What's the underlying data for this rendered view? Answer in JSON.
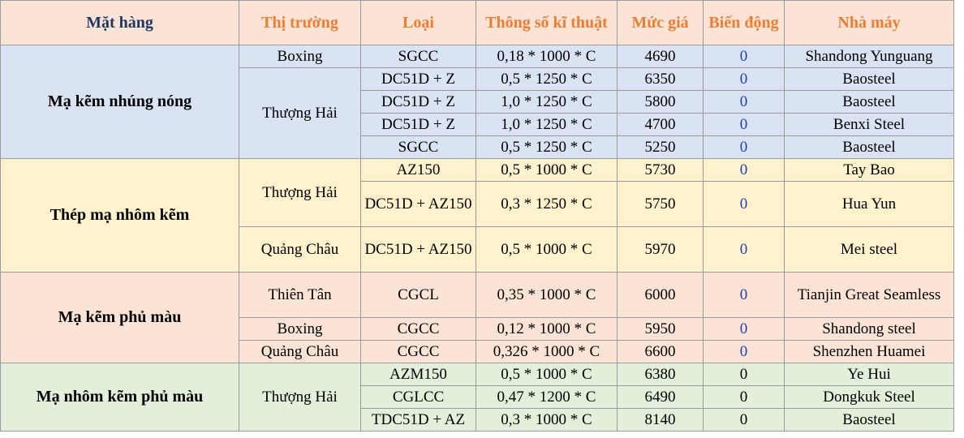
{
  "table": {
    "headers": {
      "product": "Mặt hàng",
      "market": "Thị trường",
      "type": "Loại",
      "spec": "Thông số kĩ thuật",
      "price": "Mức giá",
      "change": "Biến động",
      "factory": "Nhà máy"
    },
    "groups": [
      {
        "product": "Mạ kẽm nhúng nóng",
        "bg_color": "#dae3f3",
        "markets": [
          {
            "name": "Boxing",
            "rows": [
              {
                "type": "SGCC",
                "spec": "0,18 * 1000 * C",
                "price": "4690",
                "change": "0",
                "factory": "Shandong Yunguang"
              }
            ]
          },
          {
            "name": "Thượng Hải",
            "rows": [
              {
                "type": "DC51D + Z",
                "spec": "0,5 * 1250 * C",
                "price": "6350",
                "change": "0",
                "factory": "Baosteel"
              },
              {
                "type": "DC51D + Z",
                "spec": "1,0 * 1250 * C",
                "price": "5800",
                "change": "0",
                "factory": "Baosteel"
              },
              {
                "type": "DC51D + Z",
                "spec": "1,0 * 1250 * C",
                "price": "4700",
                "change": "0",
                "factory": "Benxi Steel"
              },
              {
                "type": "SGCC",
                "spec": "0,5 * 1250 * C",
                "price": "5250",
                "change": "0",
                "factory": "Baosteel"
              }
            ]
          }
        ]
      },
      {
        "product": "Thép mạ nhôm kẽm",
        "bg_color": "#fff2cc",
        "markets": [
          {
            "name": "Thượng Hải",
            "rows": [
              {
                "type": "AZ150",
                "spec": "0,5 * 1000 * C",
                "price": "5730",
                "change": "0",
                "factory": "Tay Bao"
              },
              {
                "type": "DC51D + AZ150",
                "spec": "0,3 * 1250 * C",
                "price": "5750",
                "change": "0",
                "factory": "Hua Yun"
              }
            ]
          },
          {
            "name": "Quảng Châu",
            "rows": [
              {
                "type": "DC51D + AZ150",
                "spec": "0,5 * 1000 * C",
                "price": "5970",
                "change": "0",
                "factory": "Mei steel"
              }
            ]
          }
        ]
      },
      {
        "product": "Mạ kẽm phủ màu",
        "bg_color": "#fbe3d5",
        "markets": [
          {
            "name": "Thiên Tân",
            "rows": [
              {
                "type": "CGCL",
                "spec": "0,35 * 1000 * C",
                "price": "6000",
                "change": "0",
                "factory": "Tianjin Great Seamless"
              }
            ]
          },
          {
            "name": "Boxing",
            "rows": [
              {
                "type": "CGCC",
                "spec": "0,12 * 1000 * C",
                "price": "5950",
                "change": "0",
                "factory": "Shandong steel"
              }
            ]
          },
          {
            "name": "Quảng Châu",
            "rows": [
              {
                "type": "CGCC",
                "spec": "0,326 * 1000 * C",
                "price": "6600",
                "change": "0",
                "factory": "Shenzhen Huamei"
              }
            ]
          }
        ]
      },
      {
        "product": "Mạ nhôm kẽm phủ màu",
        "bg_color": "#e2efda",
        "markets": [
          {
            "name": "Thượng Hải",
            "rows": [
              {
                "type": "AZM150",
                "spec": "0,5 * 1000 * C",
                "price": "6380",
                "change": "0",
                "factory": "Ye Hui"
              },
              {
                "type": "CGLCC",
                "spec": "0,47 * 1200 * C",
                "price": "6490",
                "change": "0",
                "factory": "Dongkuk Steel"
              },
              {
                "type": "TDC51D + AZ",
                "spec": "0,3 * 1000 * C",
                "price": "8140",
                "change": "0",
                "factory": "Baosteel"
              }
            ]
          }
        ]
      }
    ]
  }
}
